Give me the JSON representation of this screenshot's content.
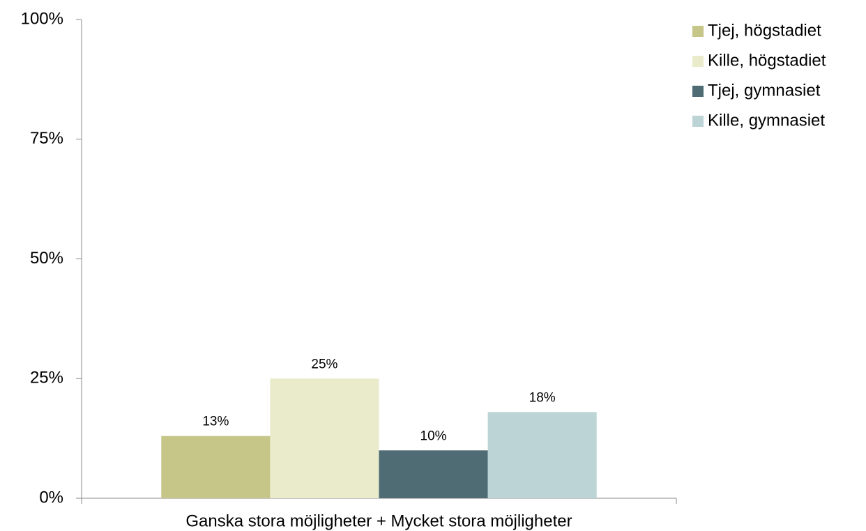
{
  "chart_data": {
    "type": "bar",
    "categories": [
      "Ganska stora möjligheter + Mycket stora möjligheter"
    ],
    "series": [
      {
        "name": "Tjej, högstadiet",
        "color": "#c5c687",
        "values": [
          13
        ],
        "value_labels": [
          "13%"
        ]
      },
      {
        "name": "Kille, högstadiet",
        "color": "#e9ebcb",
        "values": [
          25
        ],
        "value_labels": [
          "25%"
        ]
      },
      {
        "name": "Tjej, gymnasiet",
        "color": "#4f6b73",
        "values": [
          10
        ],
        "value_labels": [
          "10%"
        ]
      },
      {
        "name": "Kille, gymnasiet",
        "color": "#bcd4d6",
        "values": [
          18
        ],
        "value_labels": [
          "18%"
        ]
      }
    ],
    "ylim": [
      0,
      100
    ],
    "yticks": [
      {
        "value": 0,
        "label": "0%"
      },
      {
        "value": 25,
        "label": "25%"
      },
      {
        "value": 50,
        "label": "50%"
      },
      {
        "value": 75,
        "label": "75%"
      },
      {
        "value": 100,
        "label": "100%"
      }
    ],
    "grid": false,
    "legend": "top-right"
  }
}
